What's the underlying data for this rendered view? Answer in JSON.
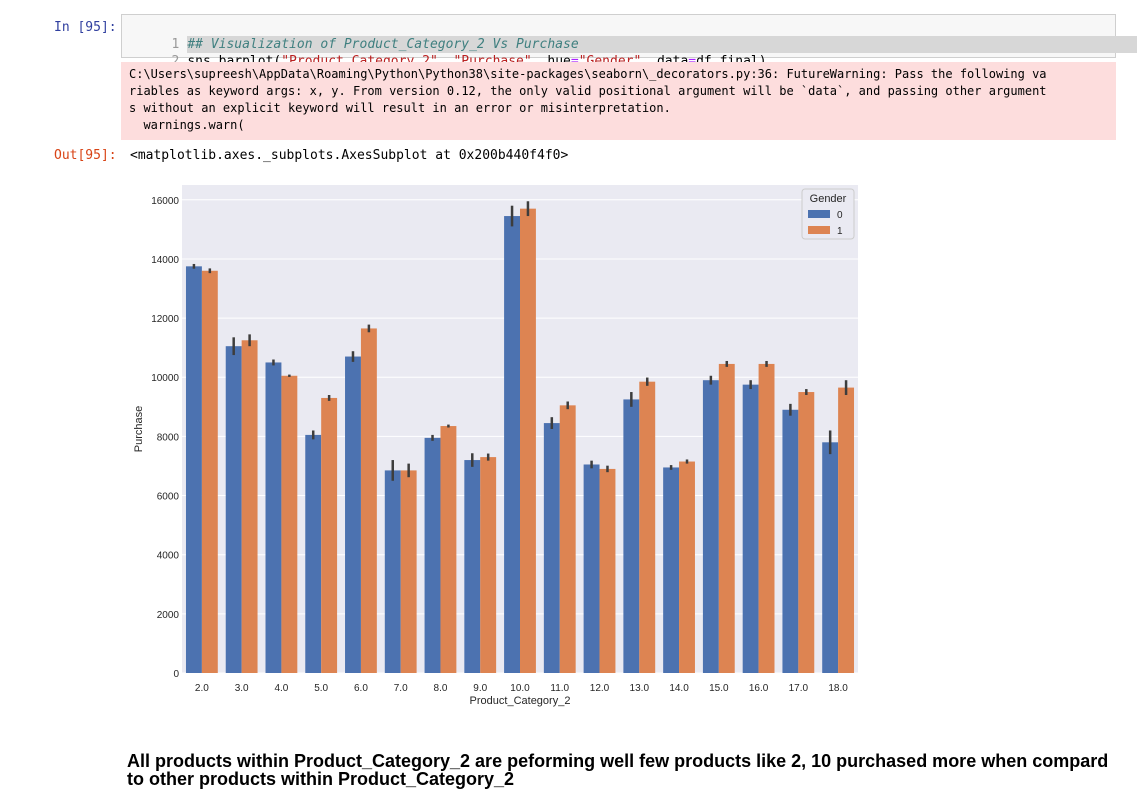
{
  "cell": {
    "in_prompt": "In [95]:",
    "out_prompt": "Out[95]:",
    "code": {
      "line1_num": "1",
      "line1": "## Visualization of Product_Category_2 Vs Purchase",
      "line2_num": "2",
      "line2_fn": "sns.barplot(",
      "line2_arg1": "\"Product_Category_2\"",
      "line2_sep1": ", ",
      "line2_arg2": "\"Purchase\"",
      "line2_sep2": ", hue",
      "line2_eq1": "=",
      "line2_arg3": "\"Gender\"",
      "line2_sep3": ", data",
      "line2_eq2": "=",
      "line2_end": "df_final)"
    },
    "warning": "C:\\Users\\supreesh\\AppData\\Roaming\\Python\\Python38\\site-packages\\seaborn\\_decorators.py:36: FutureWarning: Pass the following va\nriables as keyword args: x, y. From version 0.12, the only valid positional argument will be `data`, and passing other argument\ns without an explicit keyword will result in an error or misinterpretation.\n  warnings.warn(",
    "output_text": "<matplotlib.axes._subplots.AxesSubplot at 0x200b440f4f0>"
  },
  "chart_data": {
    "type": "bar",
    "xlabel": "Product_Category_2",
    "ylabel": "Purchase",
    "ylim": [
      0,
      16500
    ],
    "yticks": [
      0,
      2000,
      4000,
      6000,
      8000,
      10000,
      12000,
      14000,
      16000
    ],
    "categories": [
      "2.0",
      "3.0",
      "4.0",
      "5.0",
      "6.0",
      "7.0",
      "8.0",
      "9.0",
      "10.0",
      "11.0",
      "12.0",
      "13.0",
      "14.0",
      "15.0",
      "16.0",
      "17.0",
      "18.0"
    ],
    "legend_title": "Gender",
    "legend_position": "top-right",
    "grid": true,
    "series": [
      {
        "name": "0",
        "color": "#4c72b0",
        "values": [
          13750,
          11050,
          10500,
          8050,
          10700,
          6850,
          7950,
          7200,
          15450,
          8450,
          7050,
          9250,
          6950,
          9900,
          9750,
          8900,
          7800
        ],
        "err": [
          80,
          300,
          100,
          150,
          180,
          350,
          100,
          230,
          350,
          200,
          130,
          250,
          80,
          150,
          150,
          200,
          400
        ]
      },
      {
        "name": "1",
        "color": "#dd8452",
        "values": [
          13600,
          11250,
          10050,
          9300,
          11650,
          6850,
          8350,
          7300,
          15700,
          9050,
          6900,
          9850,
          7150,
          10450,
          10450,
          9500,
          9650
        ],
        "err": [
          80,
          200,
          40,
          100,
          130,
          230,
          50,
          120,
          250,
          130,
          110,
          140,
          70,
          100,
          100,
          100,
          250
        ]
      }
    ]
  },
  "markdown": "All products within Product_Category_2 are peforming well few products like 2, 10 purchased more when compard to other products within Product_Category_2"
}
